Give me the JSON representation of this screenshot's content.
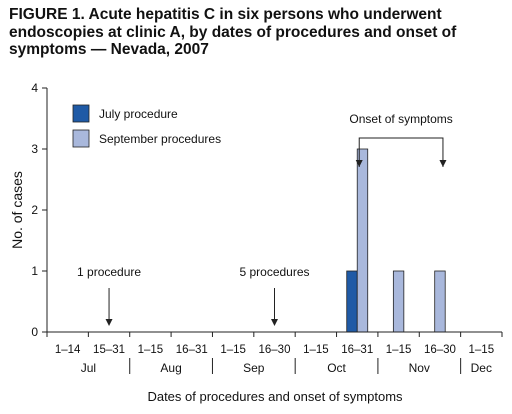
{
  "chart_data": {
    "type": "bar",
    "title": "FIGURE 1. Acute hepatitis C in six persons who underwent endoscopies at clinic A, by dates of procedures and onset of symptoms — Nevada, 2007",
    "xlabel": "Dates of procedures and onset of symptoms",
    "ylabel": "No. of cases",
    "ylim": [
      0,
      4
    ],
    "yticks": [
      "0",
      "1",
      "2",
      "3",
      "4"
    ],
    "categories": [
      "1–14",
      "15–31",
      "1–15",
      "16–31",
      "1–15",
      "16–30",
      "1–15",
      "16–31",
      "1–15",
      "16–30",
      "1–15"
    ],
    "month_groups": [
      {
        "label": "Jul",
        "span": 2
      },
      {
        "label": "Aug",
        "span": 2
      },
      {
        "label": "Sep",
        "span": 2
      },
      {
        "label": "Oct",
        "span": 2
      },
      {
        "label": "Nov",
        "span": 2
      },
      {
        "label": "Dec",
        "span": 1
      }
    ],
    "series": [
      {
        "name": "July procedure",
        "color": "#1f5aa6",
        "values": [
          0,
          0,
          0,
          0,
          0,
          0,
          0,
          1,
          0,
          0,
          0
        ]
      },
      {
        "name": "September procedures",
        "color": "#a9b8dc",
        "values": [
          0,
          0,
          0,
          0,
          0,
          0,
          0,
          3,
          1,
          1,
          0
        ]
      }
    ],
    "legend_position": "top-left",
    "annotations": [
      {
        "text": "1 procedure",
        "category_index": 1
      },
      {
        "text": "5 procedures",
        "category_index": 5
      },
      {
        "text": "Onset of symptoms",
        "from_category": 7,
        "to_category": 9
      }
    ],
    "grid": false
  }
}
